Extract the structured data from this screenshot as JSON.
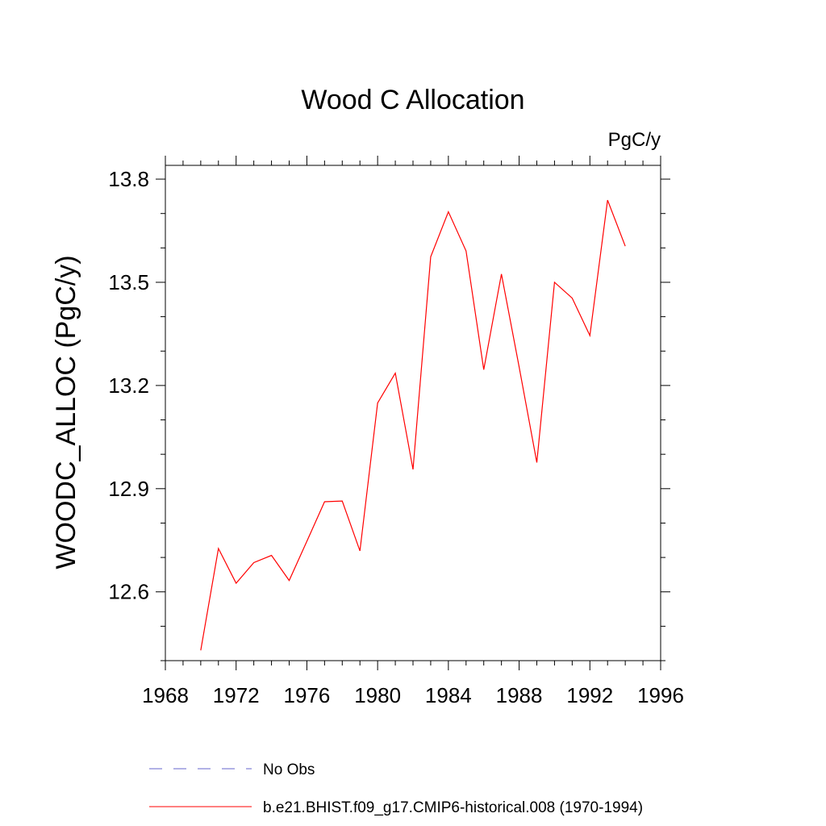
{
  "chart_data": {
    "type": "line",
    "title": "Wood C Allocation",
    "units_label": "PgC/y",
    "xlabel": "",
    "ylabel": "WOODC_ALLOC  (PgC/y)",
    "xlim": [
      1968,
      1996
    ],
    "ylim": [
      12.4,
      13.84
    ],
    "x_ticks": [
      1968,
      1972,
      1976,
      1980,
      1984,
      1988,
      1992,
      1996
    ],
    "y_ticks": [
      12.6,
      12.9,
      13.2,
      13.5,
      13.8
    ],
    "y_tick_labels": [
      "12.6",
      "12.9",
      "13.2",
      "13.5",
      "13.8"
    ],
    "grid": false,
    "legend_position": "bottom",
    "series": [
      {
        "name": "b.e21.BHIST.f09_g17.CMIP6-historical.008 (1970-1994)",
        "color": "#ff0000",
        "x": [
          1970,
          1971,
          1972,
          1973,
          1974,
          1975,
          1976,
          1977,
          1978,
          1979,
          1980,
          1981,
          1982,
          1983,
          1984,
          1985,
          1986,
          1987,
          1988,
          1989,
          1990,
          1991,
          1992,
          1993,
          1994
        ],
        "y": [
          12.43,
          12.726,
          12.625,
          12.685,
          12.706,
          12.633,
          12.747,
          12.862,
          12.864,
          12.719,
          13.149,
          13.236,
          12.956,
          13.574,
          13.705,
          13.591,
          13.246,
          13.524,
          13.254,
          12.976,
          13.5,
          13.454,
          13.345,
          13.739,
          13.605
        ]
      }
    ],
    "legend": [
      {
        "label": "No Obs",
        "color": "#6666cc",
        "style": "dashed"
      },
      {
        "label": "b.e21.BHIST.f09_g17.CMIP6-historical.008 (1970-1994)",
        "color": "#ff0000",
        "style": "solid"
      }
    ]
  }
}
